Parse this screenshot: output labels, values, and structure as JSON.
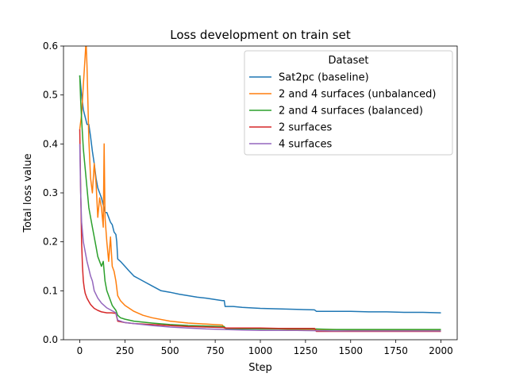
{
  "chart_data": {
    "type": "line",
    "title": "Loss development on train set",
    "xlabel": "Step",
    "ylabel": "Total loss value",
    "xlim": [
      -90,
      2090
    ],
    "ylim": [
      0,
      0.6
    ],
    "xticks": [
      0,
      250,
      500,
      750,
      1000,
      1250,
      1500,
      1750,
      2000
    ],
    "yticks": [
      0.0,
      0.1,
      0.2,
      0.3,
      0.4,
      0.5,
      0.6
    ],
    "ytick_labels": [
      "0.0",
      "0.1",
      "0.2",
      "0.3",
      "0.4",
      "0.5",
      "0.6"
    ],
    "grid": false,
    "legend": {
      "title": "Dataset",
      "position": "top-right"
    },
    "series": [
      {
        "name": "Sat2pc (baseline)",
        "color": "#1f77b4",
        "x": [
          0,
          10,
          20,
          30,
          40,
          50,
          60,
          70,
          80,
          90,
          100,
          110,
          120,
          130,
          140,
          150,
          160,
          170,
          180,
          190,
          200,
          205,
          210,
          225,
          250,
          275,
          300,
          325,
          350,
          400,
          450,
          500,
          550,
          600,
          650,
          700,
          750,
          790,
          800,
          805,
          850,
          900,
          950,
          1000,
          1100,
          1200,
          1300,
          1310,
          1400,
          1500,
          1600,
          1700,
          1800,
          1900,
          2000
        ],
        "y": [
          0.54,
          0.5,
          0.47,
          0.455,
          0.44,
          0.44,
          0.415,
          0.385,
          0.36,
          0.33,
          0.31,
          0.3,
          0.29,
          0.275,
          0.26,
          0.26,
          0.25,
          0.24,
          0.235,
          0.22,
          0.215,
          0.2,
          0.165,
          0.16,
          0.15,
          0.14,
          0.13,
          0.125,
          0.12,
          0.11,
          0.1,
          0.097,
          0.093,
          0.09,
          0.087,
          0.085,
          0.082,
          0.08,
          0.08,
          0.068,
          0.068,
          0.066,
          0.065,
          0.064,
          0.063,
          0.062,
          0.061,
          0.058,
          0.058,
          0.058,
          0.057,
          0.057,
          0.056,
          0.056,
          0.055
        ]
      },
      {
        "name": "2 and 4 surfaces (unbalanced)",
        "color": "#ff7f0e",
        "x": [
          0,
          10,
          20,
          30,
          35,
          40,
          50,
          60,
          70,
          80,
          90,
          100,
          110,
          120,
          130,
          135,
          140,
          150,
          160,
          170,
          180,
          190,
          200,
          210,
          225,
          250,
          300,
          350,
          400,
          500,
          600,
          700,
          790,
          800,
          810,
          900,
          1000,
          1100,
          1200,
          1300,
          1400,
          1500,
          1600,
          1700,
          1800,
          1900,
          2000
        ],
        "y": [
          0.43,
          0.46,
          0.52,
          0.58,
          0.61,
          0.56,
          0.41,
          0.33,
          0.3,
          0.36,
          0.32,
          0.25,
          0.29,
          0.27,
          0.23,
          0.4,
          0.25,
          0.2,
          0.16,
          0.21,
          0.15,
          0.14,
          0.12,
          0.09,
          0.08,
          0.07,
          0.058,
          0.05,
          0.045,
          0.038,
          0.034,
          0.032,
          0.03,
          0.024,
          0.024,
          0.023,
          0.022,
          0.022,
          0.021,
          0.021,
          0.021,
          0.02,
          0.02,
          0.02,
          0.02,
          0.02,
          0.02
        ]
      },
      {
        "name": "2 and 4 surfaces (balanced)",
        "color": "#2ca02c",
        "x": [
          0,
          5,
          10,
          15,
          20,
          30,
          40,
          50,
          60,
          70,
          80,
          90,
          100,
          110,
          120,
          130,
          140,
          150,
          160,
          170,
          180,
          190,
          200,
          210,
          225,
          250,
          300,
          400,
          500,
          600,
          700,
          790,
          800,
          810,
          1000,
          1200,
          1300,
          1400,
          1600,
          1800,
          2000
        ],
        "y": [
          0.54,
          0.49,
          0.45,
          0.42,
          0.39,
          0.35,
          0.31,
          0.27,
          0.25,
          0.23,
          0.21,
          0.19,
          0.17,
          0.16,
          0.15,
          0.16,
          0.12,
          0.1,
          0.09,
          0.08,
          0.07,
          0.065,
          0.06,
          0.05,
          0.045,
          0.042,
          0.038,
          0.034,
          0.031,
          0.029,
          0.028,
          0.027,
          0.027,
          0.022,
          0.022,
          0.022,
          0.022,
          0.021,
          0.021,
          0.021,
          0.021
        ]
      },
      {
        "name": "2 surfaces",
        "color": "#d62728",
        "x": [
          0,
          5,
          10,
          15,
          20,
          25,
          30,
          40,
          50,
          60,
          70,
          80,
          100,
          120,
          150,
          175,
          200,
          210,
          250,
          300,
          400,
          500,
          600,
          700,
          800,
          810,
          900,
          1000,
          1100,
          1200,
          1300,
          1310,
          1400,
          1500,
          1600,
          1700,
          1800,
          1900,
          2000
        ],
        "y": [
          0.43,
          0.31,
          0.2,
          0.15,
          0.12,
          0.105,
          0.095,
          0.085,
          0.078,
          0.072,
          0.068,
          0.064,
          0.06,
          0.057,
          0.055,
          0.055,
          0.054,
          0.038,
          0.035,
          0.033,
          0.031,
          0.029,
          0.027,
          0.026,
          0.025,
          0.024,
          0.024,
          0.024,
          0.023,
          0.023,
          0.023,
          0.017,
          0.017,
          0.017,
          0.017,
          0.017,
          0.017,
          0.017,
          0.017
        ]
      },
      {
        "name": "4 surfaces",
        "color": "#9467bd",
        "x": [
          0,
          5,
          10,
          20,
          30,
          40,
          50,
          60,
          70,
          80,
          100,
          120,
          150,
          175,
          200,
          210,
          250,
          300,
          350,
          400,
          500,
          600,
          700,
          800,
          900,
          1000,
          1200,
          1400,
          1600,
          1800,
          2000
        ],
        "y": [
          0.4,
          0.3,
          0.24,
          0.2,
          0.18,
          0.16,
          0.145,
          0.13,
          0.12,
          0.1,
          0.085,
          0.075,
          0.065,
          0.06,
          0.055,
          0.04,
          0.035,
          0.033,
          0.031,
          0.029,
          0.026,
          0.024,
          0.022,
          0.021,
          0.02,
          0.019,
          0.019,
          0.018,
          0.018,
          0.018,
          0.018
        ]
      }
    ]
  }
}
